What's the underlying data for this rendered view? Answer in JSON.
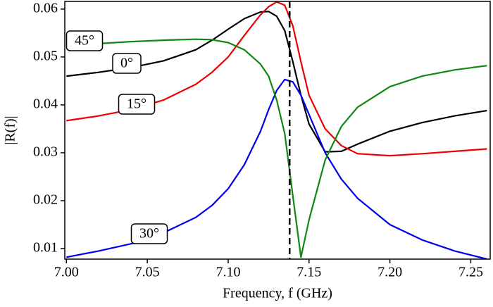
{
  "chart_data": {
    "type": "line",
    "x_label": "Frequency, f (GHz)",
    "y_label": "|R(f)|",
    "x": [
      7.0,
      7.02,
      7.04,
      7.06,
      7.08,
      7.09,
      7.1,
      7.11,
      7.12,
      7.125,
      7.13,
      7.135,
      7.14,
      7.145,
      7.15,
      7.16,
      7.17,
      7.18,
      7.2,
      7.22,
      7.24,
      7.26
    ],
    "series": [
      {
        "name": "0°",
        "color": "#000000",
        "values": [
          0.046,
          0.0468,
          0.0478,
          0.0492,
          0.0515,
          0.0535,
          0.0558,
          0.058,
          0.0594,
          0.0595,
          0.0585,
          0.0555,
          0.049,
          0.042,
          0.036,
          0.0302,
          0.0303,
          0.0318,
          0.0345,
          0.0363,
          0.0377,
          0.0388
        ]
      },
      {
        "name": "15°",
        "color": "#ee0000",
        "values": [
          0.0367,
          0.0377,
          0.039,
          0.041,
          0.0443,
          0.0468,
          0.05,
          0.0545,
          0.0588,
          0.0605,
          0.0615,
          0.0608,
          0.0565,
          0.049,
          0.042,
          0.035,
          0.0315,
          0.0298,
          0.0294,
          0.0298,
          0.0303,
          0.0308
        ]
      },
      {
        "name": "30°",
        "color": "#0000ee",
        "values": [
          0.0082,
          0.0095,
          0.011,
          0.0133,
          0.0165,
          0.019,
          0.0225,
          0.0275,
          0.0345,
          0.039,
          0.043,
          0.0453,
          0.0448,
          0.042,
          0.038,
          0.03,
          0.0245,
          0.0205,
          0.015,
          0.0118,
          0.0095,
          0.0078
        ]
      },
      {
        "name": "45°",
        "color": "#118811",
        "values": [
          0.0525,
          0.0528,
          0.0532,
          0.0535,
          0.0537,
          0.0536,
          0.053,
          0.0515,
          0.0485,
          0.046,
          0.041,
          0.034,
          0.021,
          0.0082,
          0.016,
          0.0285,
          0.0355,
          0.0395,
          0.0438,
          0.046,
          0.0473,
          0.0482
        ]
      }
    ],
    "vline": 7.138,
    "xlim": [
      6.999,
      7.262
    ],
    "ylim": [
      0.0078,
      0.0616
    ],
    "xticks": [
      {
        "value": 7.0,
        "label": "7.00"
      },
      7.05,
      {
        "value": 7.1,
        "label": "7.10"
      },
      7.15,
      {
        "value": 7.2,
        "label": "7.20"
      },
      7.25
    ],
    "yticks": [
      0.01,
      0.02,
      0.03,
      0.04,
      0.05,
      0.06
    ]
  }
}
